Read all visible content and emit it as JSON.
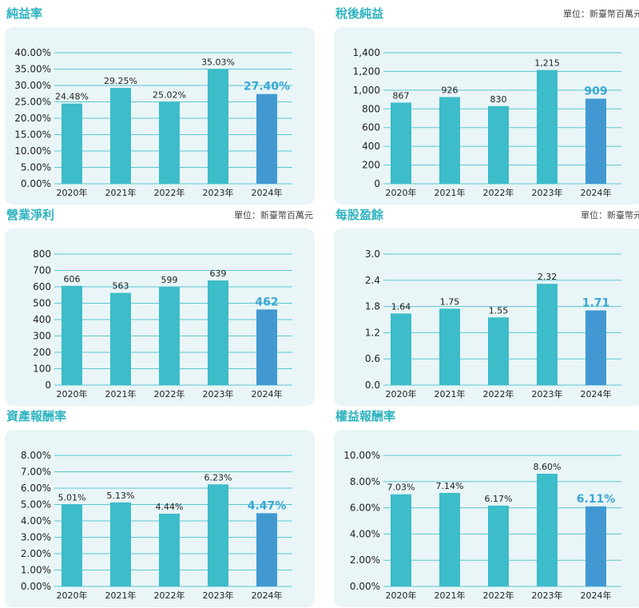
{
  "colors": {
    "bar": "#3dbcc9",
    "highlight": "#4299d2",
    "grid": "#5cc6d1",
    "title": "#2fb3c0",
    "card": "#e9f5f7"
  },
  "chart_data": [
    {
      "type": "bar",
      "title": "純益率",
      "unit": "",
      "categories": [
        "2020年",
        "2021年",
        "2022年",
        "2023年",
        "2024年"
      ],
      "values": [
        24.48,
        29.25,
        25.02,
        35.03,
        27.4
      ],
      "labels": [
        "24.48%",
        "29.25%",
        "25.02%",
        "35.03%",
        "27.40%"
      ],
      "yticks": [
        "0.00%",
        "5.00%",
        "10.00%",
        "15.00%",
        "20.00%",
        "25.00%",
        "30.00%",
        "35.00%",
        "40.00%"
      ],
      "ylim": [
        0,
        40
      ],
      "highlight_index": 4
    },
    {
      "type": "bar",
      "title": "稅後純益",
      "unit": "單位：新臺幣百萬元",
      "categories": [
        "2020年",
        "2021年",
        "2022年",
        "2023年",
        "2024年"
      ],
      "values": [
        867,
        926,
        830,
        1215,
        909
      ],
      "labels": [
        "867",
        "926",
        "830",
        "1,215",
        "909"
      ],
      "yticks": [
        "0",
        "200",
        "400",
        "600",
        "800",
        "1,000",
        "1,200",
        "1,400"
      ],
      "ylim": [
        0,
        1400
      ],
      "highlight_index": 4
    },
    {
      "type": "bar",
      "title": "營業淨利",
      "unit": "單位：新臺幣百萬元",
      "categories": [
        "2020年",
        "2021年",
        "2022年",
        "2023年",
        "2024年"
      ],
      "values": [
        606,
        563,
        599,
        639,
        462
      ],
      "labels": [
        "606",
        "563",
        "599",
        "639",
        "462"
      ],
      "yticks": [
        "0",
        "100",
        "200",
        "300",
        "400",
        "500",
        "600",
        "700",
        "800"
      ],
      "ylim": [
        0,
        800
      ],
      "highlight_index": 4
    },
    {
      "type": "bar",
      "title": "每股盈餘",
      "unit": "單位：新臺幣元",
      "categories": [
        "2020年",
        "2021年",
        "2022年",
        "2023年",
        "2024年"
      ],
      "values": [
        1.64,
        1.75,
        1.55,
        2.32,
        1.71
      ],
      "labels": [
        "1.64",
        "1.75",
        "1.55",
        "2.32",
        "1.71"
      ],
      "yticks": [
        "0.0",
        "0.6",
        "1.2",
        "1.8",
        "2.4",
        "3.0"
      ],
      "ylim": [
        0,
        3.0
      ],
      "highlight_index": 4
    },
    {
      "type": "bar",
      "title": "資產報酬率",
      "unit": "",
      "categories": [
        "2020年",
        "2021年",
        "2022年",
        "2023年",
        "2024年"
      ],
      "values": [
        5.01,
        5.13,
        4.44,
        6.23,
        4.47
      ],
      "labels": [
        "5.01%",
        "5.13%",
        "4.44%",
        "6.23%",
        "4.47%"
      ],
      "yticks": [
        "0.00%",
        "1.00%",
        "2.00%",
        "3.00%",
        "4.00%",
        "5.00%",
        "6.00%",
        "7.00%",
        "8.00%"
      ],
      "ylim": [
        0,
        8
      ],
      "highlight_index": 4
    },
    {
      "type": "bar",
      "title": "權益報酬率",
      "unit": "",
      "categories": [
        "2020年",
        "2021年",
        "2022年",
        "2023年",
        "2024年"
      ],
      "values": [
        7.03,
        7.14,
        6.17,
        8.6,
        6.11
      ],
      "labels": [
        "7.03%",
        "7.14%",
        "6.17%",
        "8.60%",
        "6.11%"
      ],
      "yticks": [
        "0.00%",
        "2.00%",
        "4.00%",
        "6.00%",
        "8.00%",
        "10.00%"
      ],
      "ylim": [
        0,
        10
      ],
      "highlight_index": 4
    }
  ]
}
